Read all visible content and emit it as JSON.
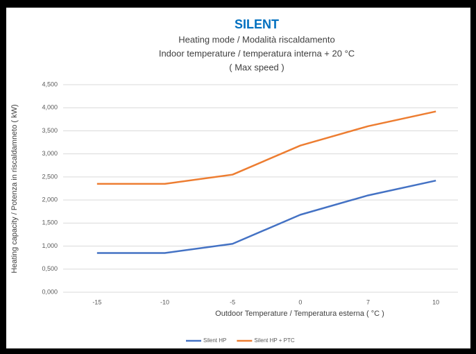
{
  "chart_data": {
    "type": "line",
    "title": "SILENT",
    "subtitle": [
      "Heating mode / Modalità riscaldamento",
      "Indoor temperature / temperatura interna + 20 °C",
      "( Max speed )"
    ],
    "x_label": "Outdoor Temperature / Temperatura esterna ( °C )",
    "y_label": "Heating capacity / Potenza in riscaldamneto ( kW)",
    "categories": [
      "-15",
      "-10",
      "-5",
      "0",
      "7",
      "10"
    ],
    "series": [
      {
        "name": "Silent  HP",
        "color": "#4472c4",
        "values": [
          0.85,
          0.85,
          1.05,
          1.68,
          2.1,
          2.42
        ]
      },
      {
        "name": "Silent  HP + PTC",
        "color": "#ed7d31",
        "values": [
          2.35,
          2.35,
          2.55,
          3.18,
          3.6,
          3.92
        ]
      }
    ],
    "ylim": [
      0,
      4.5
    ],
    "yticks": [
      {
        "value": 0,
        "label": "0,000"
      },
      {
        "value": 0.5,
        "label": "0,500"
      },
      {
        "value": 1,
        "label": "1,000"
      },
      {
        "value": 1.5,
        "label": "1,500"
      },
      {
        "value": 2,
        "label": "2,000"
      },
      {
        "value": 2.5,
        "label": "2,500"
      },
      {
        "value": 3,
        "label": "3,000"
      },
      {
        "value": 3.5,
        "label": "3,500"
      },
      {
        "value": 4,
        "label": "4,000"
      },
      {
        "value": 4.5,
        "label": "4,500"
      }
    ],
    "grid": true,
    "legend": "bottom"
  }
}
